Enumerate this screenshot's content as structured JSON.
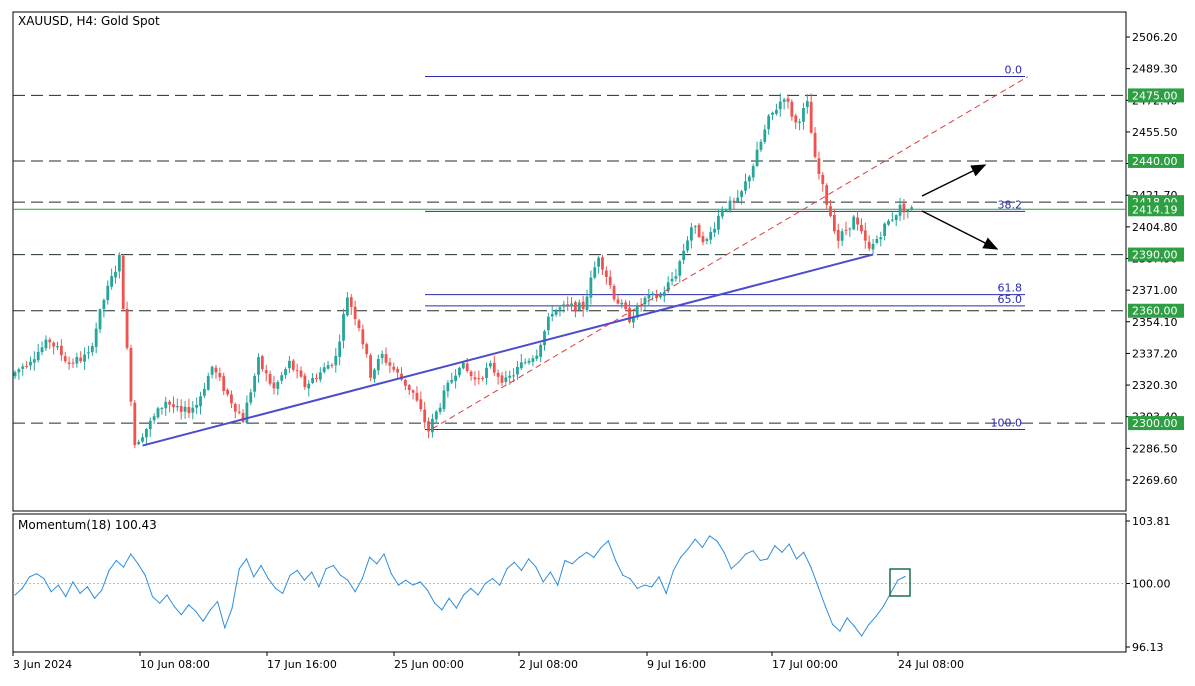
{
  "header": {
    "symbol_title": "XAUUSD, H4:  Gold Spot",
    "indicator_title": "Momentum(18) 100.43"
  },
  "colors": {
    "bull": "#26a69a",
    "bear": "#ef5350",
    "support_line": "#4c4ccc",
    "fib_line": "#2b2bb0",
    "trend_dashed": "#e03c3c",
    "level_label_bg": "#2ea043",
    "momentum_line": "#2e8fdc",
    "highlight_box": "#1e6e4e",
    "arrow": "#000000"
  },
  "chart_data": [
    {
      "type": "candlestick",
      "title": "XAUUSD, H4:  Gold Spot",
      "ylim": [
        2252.3,
        2523.5
      ],
      "y_ticks": [
        2506.2,
        2489.3,
        2472.4,
        2455.5,
        2438.6,
        2421.7,
        2404.8,
        2387.9,
        2371.0,
        2354.1,
        2337.2,
        2320.3,
        2303.4,
        2286.5,
        2269.6
      ],
      "y_tick_labels": [
        "2506.20",
        "2489.30",
        "2472.40",
        "2455.50",
        "2438.60",
        "2421.70",
        "2404.80",
        "2387.90",
        "2371.00",
        "2354.10",
        "2337.20",
        "2320.30",
        "2303.40",
        "2286.50",
        "2269.60"
      ],
      "x_tick_labels": [
        "3 Jun 2024",
        "10 Jun 08:00",
        "17 Jun 16:00",
        "25 Jun 00:00",
        "2 Jul 08:00",
        "9 Jul 16:00",
        "17 Jul 00:00",
        "24 Jul 08:00"
      ],
      "price_path": [
        {
          "x": 0,
          "price": 2325
        },
        {
          "x": 10,
          "price": 2344
        },
        {
          "x": 15,
          "price": 2332
        },
        {
          "x": 20,
          "price": 2336
        },
        {
          "x": 24,
          "price": 2366
        },
        {
          "x": 28,
          "price": 2388
        },
        {
          "x": 32,
          "price": 2289
        },
        {
          "x": 36,
          "price": 2300
        },
        {
          "x": 40,
          "price": 2312
        },
        {
          "x": 44,
          "price": 2305
        },
        {
          "x": 48,
          "price": 2310
        },
        {
          "x": 52,
          "price": 2330
        },
        {
          "x": 56,
          "price": 2315
        },
        {
          "x": 60,
          "price": 2302
        },
        {
          "x": 64,
          "price": 2333
        },
        {
          "x": 68,
          "price": 2318
        },
        {
          "x": 72,
          "price": 2332
        },
        {
          "x": 76,
          "price": 2320
        },
        {
          "x": 80,
          "price": 2327
        },
        {
          "x": 84,
          "price": 2335
        },
        {
          "x": 87,
          "price": 2368
        },
        {
          "x": 90,
          "price": 2352
        },
        {
          "x": 93,
          "price": 2326
        },
        {
          "x": 96,
          "price": 2336
        },
        {
          "x": 100,
          "price": 2326
        },
        {
          "x": 104,
          "price": 2316
        },
        {
          "x": 108,
          "price": 2296
        },
        {
          "x": 112,
          "price": 2315
        },
        {
          "x": 116,
          "price": 2332
        },
        {
          "x": 120,
          "price": 2323
        },
        {
          "x": 124,
          "price": 2330
        },
        {
          "x": 128,
          "price": 2322
        },
        {
          "x": 132,
          "price": 2331
        },
        {
          "x": 136,
          "price": 2338
        },
        {
          "x": 140,
          "price": 2360
        },
        {
          "x": 144,
          "price": 2362
        },
        {
          "x": 148,
          "price": 2362
        },
        {
          "x": 152,
          "price": 2390
        },
        {
          "x": 156,
          "price": 2368
        },
        {
          "x": 160,
          "price": 2356
        },
        {
          "x": 164,
          "price": 2366
        },
        {
          "x": 168,
          "price": 2368
        },
        {
          "x": 172,
          "price": 2380
        },
        {
          "x": 176,
          "price": 2405
        },
        {
          "x": 180,
          "price": 2397
        },
        {
          "x": 184,
          "price": 2415
        },
        {
          "x": 188,
          "price": 2418
        },
        {
          "x": 192,
          "price": 2438
        },
        {
          "x": 196,
          "price": 2462
        },
        {
          "x": 200,
          "price": 2475
        },
        {
          "x": 203,
          "price": 2460
        },
        {
          "x": 206,
          "price": 2470
        },
        {
          "x": 208,
          "price": 2440
        },
        {
          "x": 211,
          "price": 2418
        },
        {
          "x": 214,
          "price": 2398
        },
        {
          "x": 218,
          "price": 2409
        },
        {
          "x": 222,
          "price": 2392
        },
        {
          "x": 226,
          "price": 2405
        },
        {
          "x": 230,
          "price": 2415
        },
        {
          "x": 232,
          "price": 2414
        }
      ],
      "horizontal_levels": [
        {
          "value": 2475.0,
          "label": "2475.00"
        },
        {
          "value": 2440.0,
          "label": "2440.00"
        },
        {
          "value": 2418.0,
          "label": "2418.00"
        },
        {
          "value": 2390.0,
          "label": "2390.00"
        },
        {
          "value": 2360.0,
          "label": "2360.00"
        },
        {
          "value": 2300.0,
          "label": "2300.00"
        }
      ],
      "current_price": {
        "value": 2414.19,
        "label": "2414.19"
      },
      "fibonacci": {
        "high": 2485.1,
        "low": 2296.6,
        "levels": [
          {
            "ratio": "0.0",
            "value": 2485.1
          },
          {
            "ratio": "38.2",
            "value": 2413.1
          },
          {
            "ratio": "61.8",
            "value": 2368.6
          },
          {
            "ratio": "65.0",
            "value": 2362.6
          },
          {
            "ratio": "100.0",
            "value": 2296.6
          }
        ]
      },
      "trendlines": [
        {
          "name": "support",
          "points": [
            {
              "x": 33,
              "price": 2288
            },
            {
              "x": 222,
              "price": 2390
            }
          ]
        },
        {
          "name": "dashed-uptrend",
          "points": [
            {
              "x": 108,
              "price": 2297
            },
            {
              "x": 262,
              "price": 2485
            }
          ]
        }
      ]
    },
    {
      "type": "line",
      "title": "Momentum(18) 100.43",
      "ylim": [
        96.13,
        103.81
      ],
      "y_ticks": [
        103.81,
        100.0,
        96.13
      ],
      "y_tick_labels": [
        "103.81",
        "100.00",
        "96.13"
      ],
      "reference_level": 100.0,
      "last_value": 100.43,
      "series": [
        {
          "values": [
            99.3,
            99.7,
            100.4,
            100.6,
            100.3,
            99.5,
            99.9,
            99.2,
            100.1,
            99.4,
            99.8,
            99.1,
            99.6,
            100.8,
            101.4,
            101.0,
            101.8,
            101.2,
            100.5,
            99.2,
            98.8,
            99.3,
            98.6,
            98.1,
            98.7,
            98.3,
            97.7,
            98.4,
            98.9,
            97.3,
            98.5,
            100.9,
            101.5,
            100.4,
            101.1,
            100.3,
            99.7,
            99.4,
            100.5,
            100.8,
            100.2,
            100.7,
            99.8,
            100.9,
            101.1,
            100.5,
            100.2,
            99.5,
            100.3,
            101.6,
            101.2,
            101.8,
            100.6,
            99.9,
            100.2,
            99.9,
            100.1,
            99.6,
            98.8,
            98.4,
            99.1,
            98.5,
            99.3,
            99.7,
            99.3,
            100.0,
            100.3,
            99.9,
            100.9,
            101.3,
            100.8,
            101.5,
            101.0,
            100.1,
            100.7,
            99.9,
            101.4,
            101.2,
            101.6,
            101.9,
            101.6,
            102.2,
            102.6,
            101.4,
            100.5,
            100.3,
            99.7,
            99.9,
            99.8,
            100.4,
            99.4,
            100.8,
            101.6,
            102.1,
            102.7,
            102.2,
            102.9,
            102.6,
            101.9,
            100.9,
            101.3,
            101.8,
            102.0,
            101.4,
            101.5,
            102.3,
            101.9,
            102.4,
            101.5,
            101.9,
            101.0,
            99.8,
            98.6,
            97.5,
            97.1,
            97.9,
            97.4,
            96.8,
            97.5,
            98.0,
            98.6,
            99.4,
            100.2,
            100.43
          ]
        }
      ]
    }
  ]
}
